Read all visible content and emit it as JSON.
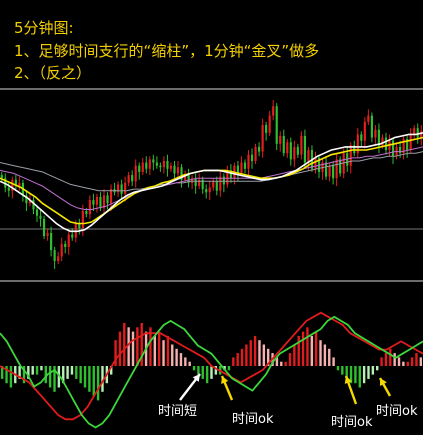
{
  "header": {
    "line1": "5分钟图:",
    "line2": "1、足够时间支行的“缩柱”，1分钟“金叉”做多",
    "line3": "2、（反之）"
  },
  "colors": {
    "up": "#e61e1e",
    "down": "#2fbf2f",
    "ma_white": "#ffffff",
    "ma_yellow": "#f5e700",
    "ma_purple": "#c070d0",
    "ma_slow": "#9aa0a8",
    "dif": "#3cd63c",
    "dea": "#e01c1c",
    "hist_up": "#e01c1c",
    "hist_up_light": "#f5b0b0",
    "hist_down": "#2fbf2f",
    "hist_down_light": "#b7f0b7",
    "annotation_white": "#ffffff",
    "annotation_yellow": "#f5d800"
  },
  "chart_data": {
    "type": "candlestick",
    "price_panel": {
      "closes": [
        150,
        144,
        142,
        149,
        145,
        147,
        139,
        134,
        136,
        130,
        126,
        124,
        113,
        115,
        104,
        97,
        100,
        108,
        106,
        114,
        112,
        121,
        118,
        129,
        127,
        136,
        133,
        138,
        131,
        139,
        134,
        143,
        141,
        146,
        140,
        147,
        152,
        148,
        158,
        154,
        160,
        156,
        162,
        160,
        158,
        157,
        161,
        156,
        158,
        153,
        157,
        149,
        152,
        147,
        150,
        145,
        149,
        143,
        141,
        144,
        148,
        142,
        151,
        146,
        155,
        150,
        158,
        153,
        160,
        156,
        165,
        161,
        170,
        167,
        184,
        179,
        190,
        196,
        172,
        177,
        166,
        173,
        162,
        170,
        165,
        177,
        160,
        168,
        156,
        163,
        154,
        160,
        151,
        158,
        150,
        162,
        153,
        166,
        158,
        171,
        166,
        178,
        174,
        186,
        190,
        176,
        181,
        171,
        176,
        168,
        174,
        164,
        170,
        166,
        175,
        168,
        178,
        182,
        176,
        180
      ],
      "ma_white": [
        148,
        146,
        143,
        140,
        137,
        133,
        129,
        125,
        121,
        118,
        116,
        116,
        117,
        120,
        124,
        128,
        132,
        136,
        139,
        141,
        142,
        143,
        144,
        145,
        147,
        149,
        151,
        153,
        154,
        155,
        155,
        155,
        154,
        153,
        152,
        151,
        150,
        149,
        149,
        150,
        151,
        153,
        155,
        158,
        161,
        164,
        166,
        168,
        169,
        170,
        170,
        170,
        170,
        171,
        172,
        174,
        176,
        177,
        178,
        178,
        179
      ],
      "ma_yellow": [
        150,
        148,
        146,
        144,
        141,
        138,
        134,
        131,
        128,
        125,
        122,
        121,
        121,
        122,
        125,
        128,
        131,
        134,
        137,
        140,
        142,
        144,
        145,
        147,
        148,
        150,
        152,
        153,
        154,
        155,
        155,
        155,
        155,
        154,
        153,
        152,
        151,
        150,
        150,
        150,
        151,
        152,
        154,
        156,
        159,
        161,
        163,
        165,
        166,
        167,
        168,
        168,
        168,
        169,
        170,
        171,
        172,
        173,
        174,
        175,
        176
      ],
      "ma_purple": [
        155,
        154,
        153,
        151,
        149,
        147,
        145,
        142,
        139,
        136,
        133,
        131,
        130,
        130,
        131,
        132,
        134,
        136,
        138,
        140,
        142,
        143,
        144,
        145,
        146,
        147,
        148,
        149,
        150,
        150,
        150,
        150,
        150,
        150,
        150,
        150,
        150,
        150,
        151,
        152,
        153,
        154,
        155,
        156,
        157,
        158,
        159,
        160,
        161,
        162,
        163,
        163,
        164,
        164,
        165,
        166,
        167,
        167,
        168,
        169,
        170
      ],
      "ma_slow": [
        160,
        159,
        158,
        157,
        156,
        155,
        154,
        152,
        150,
        148,
        146,
        145,
        144,
        143,
        142,
        142,
        142,
        142,
        142,
        143,
        143,
        144,
        145,
        146,
        146,
        147,
        147,
        148,
        148,
        148,
        148,
        148,
        148,
        148,
        148,
        148,
        148,
        148,
        149,
        150,
        151,
        152,
        153,
        154,
        155,
        156,
        157,
        158,
        159,
        160,
        161,
        161,
        162,
        163,
        163,
        164,
        164,
        165,
        166,
        166,
        167
      ]
    },
    "macd_panel": {
      "histogram": [
        -3,
        -4,
        -5,
        -4,
        -3,
        -4,
        -3,
        -2,
        -2,
        -1,
        -4,
        -5,
        -6,
        -5,
        -4,
        -3,
        -2,
        -3,
        -4,
        -5,
        -6,
        -7,
        -8,
        -6,
        -4,
        -2,
        6,
        8,
        10,
        9,
        8,
        9,
        10,
        8,
        9,
        7,
        8,
        6,
        7,
        5,
        4,
        3,
        2,
        1,
        -1,
        -2,
        -3,
        -4,
        -3,
        -2,
        -2,
        -1,
        -1,
        2,
        3,
        4,
        5,
        6,
        7,
        6,
        5,
        4,
        3,
        2,
        1,
        1,
        3,
        5,
        7,
        8,
        9,
        7,
        8,
        6,
        5,
        4,
        2,
        -1,
        -2,
        -3,
        -4,
        -4,
        -5,
        -4,
        -3,
        -2,
        -1,
        2,
        3,
        4,
        3,
        2,
        1,
        1,
        2,
        3,
        2
      ],
      "dif": [
        8,
        6,
        3,
        0,
        -2,
        -5,
        -4,
        -2,
        -1,
        -3,
        -6,
        -9,
        -12,
        -14,
        -15,
        -14,
        -12,
        -9,
        -6,
        -3,
        0,
        3,
        6,
        8,
        10,
        11,
        10,
        9,
        7,
        5,
        4,
        3,
        1,
        -1,
        -3,
        -4,
        -5,
        -6,
        -4,
        -2,
        1,
        3,
        4,
        5,
        6,
        7,
        8,
        9,
        11,
        12,
        11,
        10,
        8,
        7,
        6,
        5,
        4,
        3,
        2,
        3,
        4,
        5,
        6
      ],
      "dea": [
        0,
        -1,
        -2,
        -3,
        -4,
        -6,
        -8,
        -10,
        -12,
        -13,
        -13,
        -12,
        -10,
        -7,
        -4,
        -1,
        2,
        4,
        6,
        7,
        8,
        8,
        8,
        7,
        6,
        5,
        4,
        3,
        2,
        0,
        -1,
        -2,
        -3,
        -4,
        -3,
        -2,
        -1,
        1,
        3,
        5,
        7,
        9,
        11,
        12,
        13,
        12,
        11,
        10,
        8,
        7,
        6,
        5,
        4,
        4,
        5,
        6,
        5,
        4,
        3
      ]
    },
    "annotations": [
      {
        "text": "时间短",
        "color": "white"
      },
      {
        "text": "时间ok",
        "color": "yellow"
      },
      {
        "text": "时间ok",
        "color": "yellow"
      },
      {
        "text": "时间ok",
        "color": "yellow"
      }
    ]
  }
}
